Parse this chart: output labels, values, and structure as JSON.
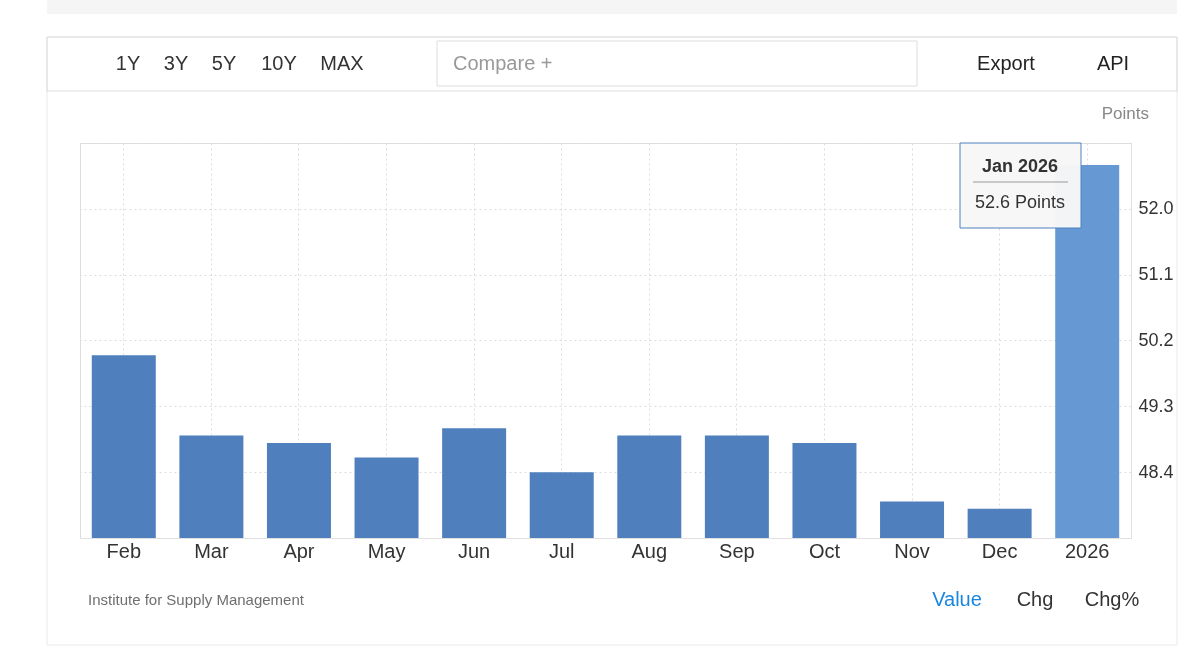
{
  "chart_data": {
    "type": "bar",
    "ylabel": "Points",
    "categories": [
      "Feb",
      "Mar",
      "Apr",
      "May",
      "Jun",
      "Jul",
      "Aug",
      "Sep",
      "Oct",
      "Nov",
      "Dec",
      "2026"
    ],
    "values": [
      50.0,
      48.9,
      48.8,
      48.6,
      49.0,
      48.4,
      48.9,
      48.9,
      48.8,
      48.0,
      47.9,
      52.6
    ],
    "colors": [
      "#4f80bd",
      "#4f80bd",
      "#4f80bd",
      "#4f80bd",
      "#4f80bd",
      "#4f80bd",
      "#4f80bd",
      "#4f80bd",
      "#4f80bd",
      "#4f80bd",
      "#4f80bd",
      "#6699d4"
    ],
    "ylim": [
      47.5,
      52.9
    ],
    "yticks": [
      48.4,
      49.3,
      50.2,
      51.1,
      {
        "value": 52.0,
        "label": "52.0"
      },
      {
        "value": 52.9,
        "label": null
      }
    ],
    "grid": true,
    "annotations": [
      "1Y",
      "3Y",
      "5Y",
      "10Y",
      "MAX",
      "Compare +",
      "Export",
      "API",
      "Jan 2026",
      "52.6 Points",
      "Institute for Supply Management",
      "Value",
      "Chg",
      "Chg%"
    ]
  }
}
